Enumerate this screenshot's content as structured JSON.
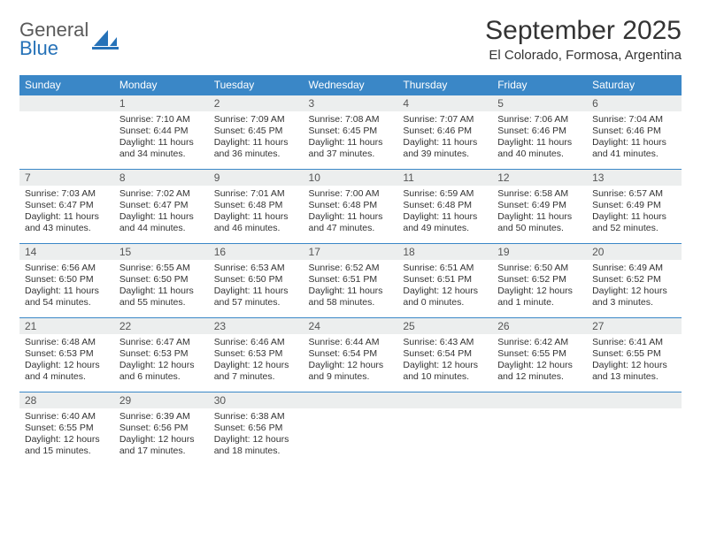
{
  "brand": {
    "name_a": "General",
    "name_b": "Blue"
  },
  "title": "September 2025",
  "location": "El Colorado, Formosa, Argentina",
  "colors": {
    "header_bg": "#3a87c7",
    "header_text": "#ffffff",
    "daynum_bg": "#eceeee",
    "cell_border": "#3a87c7",
    "brand_gray": "#5a5a5a",
    "brand_blue": "#2672b8"
  },
  "weekdays": [
    "Sunday",
    "Monday",
    "Tuesday",
    "Wednesday",
    "Thursday",
    "Friday",
    "Saturday"
  ],
  "weeks": [
    [
      null,
      {
        "n": "1",
        "sr": "Sunrise: 7:10 AM",
        "ss": "Sunset: 6:44 PM",
        "d1": "Daylight: 11 hours",
        "d2": "and 34 minutes."
      },
      {
        "n": "2",
        "sr": "Sunrise: 7:09 AM",
        "ss": "Sunset: 6:45 PM",
        "d1": "Daylight: 11 hours",
        "d2": "and 36 minutes."
      },
      {
        "n": "3",
        "sr": "Sunrise: 7:08 AM",
        "ss": "Sunset: 6:45 PM",
        "d1": "Daylight: 11 hours",
        "d2": "and 37 minutes."
      },
      {
        "n": "4",
        "sr": "Sunrise: 7:07 AM",
        "ss": "Sunset: 6:46 PM",
        "d1": "Daylight: 11 hours",
        "d2": "and 39 minutes."
      },
      {
        "n": "5",
        "sr": "Sunrise: 7:06 AM",
        "ss": "Sunset: 6:46 PM",
        "d1": "Daylight: 11 hours",
        "d2": "and 40 minutes."
      },
      {
        "n": "6",
        "sr": "Sunrise: 7:04 AM",
        "ss": "Sunset: 6:46 PM",
        "d1": "Daylight: 11 hours",
        "d2": "and 41 minutes."
      }
    ],
    [
      {
        "n": "7",
        "sr": "Sunrise: 7:03 AM",
        "ss": "Sunset: 6:47 PM",
        "d1": "Daylight: 11 hours",
        "d2": "and 43 minutes."
      },
      {
        "n": "8",
        "sr": "Sunrise: 7:02 AM",
        "ss": "Sunset: 6:47 PM",
        "d1": "Daylight: 11 hours",
        "d2": "and 44 minutes."
      },
      {
        "n": "9",
        "sr": "Sunrise: 7:01 AM",
        "ss": "Sunset: 6:48 PM",
        "d1": "Daylight: 11 hours",
        "d2": "and 46 minutes."
      },
      {
        "n": "10",
        "sr": "Sunrise: 7:00 AM",
        "ss": "Sunset: 6:48 PM",
        "d1": "Daylight: 11 hours",
        "d2": "and 47 minutes."
      },
      {
        "n": "11",
        "sr": "Sunrise: 6:59 AM",
        "ss": "Sunset: 6:48 PM",
        "d1": "Daylight: 11 hours",
        "d2": "and 49 minutes."
      },
      {
        "n": "12",
        "sr": "Sunrise: 6:58 AM",
        "ss": "Sunset: 6:49 PM",
        "d1": "Daylight: 11 hours",
        "d2": "and 50 minutes."
      },
      {
        "n": "13",
        "sr": "Sunrise: 6:57 AM",
        "ss": "Sunset: 6:49 PM",
        "d1": "Daylight: 11 hours",
        "d2": "and 52 minutes."
      }
    ],
    [
      {
        "n": "14",
        "sr": "Sunrise: 6:56 AM",
        "ss": "Sunset: 6:50 PM",
        "d1": "Daylight: 11 hours",
        "d2": "and 54 minutes."
      },
      {
        "n": "15",
        "sr": "Sunrise: 6:55 AM",
        "ss": "Sunset: 6:50 PM",
        "d1": "Daylight: 11 hours",
        "d2": "and 55 minutes."
      },
      {
        "n": "16",
        "sr": "Sunrise: 6:53 AM",
        "ss": "Sunset: 6:50 PM",
        "d1": "Daylight: 11 hours",
        "d2": "and 57 minutes."
      },
      {
        "n": "17",
        "sr": "Sunrise: 6:52 AM",
        "ss": "Sunset: 6:51 PM",
        "d1": "Daylight: 11 hours",
        "d2": "and 58 minutes."
      },
      {
        "n": "18",
        "sr": "Sunrise: 6:51 AM",
        "ss": "Sunset: 6:51 PM",
        "d1": "Daylight: 12 hours",
        "d2": "and 0 minutes."
      },
      {
        "n": "19",
        "sr": "Sunrise: 6:50 AM",
        "ss": "Sunset: 6:52 PM",
        "d1": "Daylight: 12 hours",
        "d2": "and 1 minute."
      },
      {
        "n": "20",
        "sr": "Sunrise: 6:49 AM",
        "ss": "Sunset: 6:52 PM",
        "d1": "Daylight: 12 hours",
        "d2": "and 3 minutes."
      }
    ],
    [
      {
        "n": "21",
        "sr": "Sunrise: 6:48 AM",
        "ss": "Sunset: 6:53 PM",
        "d1": "Daylight: 12 hours",
        "d2": "and 4 minutes."
      },
      {
        "n": "22",
        "sr": "Sunrise: 6:47 AM",
        "ss": "Sunset: 6:53 PM",
        "d1": "Daylight: 12 hours",
        "d2": "and 6 minutes."
      },
      {
        "n": "23",
        "sr": "Sunrise: 6:46 AM",
        "ss": "Sunset: 6:53 PM",
        "d1": "Daylight: 12 hours",
        "d2": "and 7 minutes."
      },
      {
        "n": "24",
        "sr": "Sunrise: 6:44 AM",
        "ss": "Sunset: 6:54 PM",
        "d1": "Daylight: 12 hours",
        "d2": "and 9 minutes."
      },
      {
        "n": "25",
        "sr": "Sunrise: 6:43 AM",
        "ss": "Sunset: 6:54 PM",
        "d1": "Daylight: 12 hours",
        "d2": "and 10 minutes."
      },
      {
        "n": "26",
        "sr": "Sunrise: 6:42 AM",
        "ss": "Sunset: 6:55 PM",
        "d1": "Daylight: 12 hours",
        "d2": "and 12 minutes."
      },
      {
        "n": "27",
        "sr": "Sunrise: 6:41 AM",
        "ss": "Sunset: 6:55 PM",
        "d1": "Daylight: 12 hours",
        "d2": "and 13 minutes."
      }
    ],
    [
      {
        "n": "28",
        "sr": "Sunrise: 6:40 AM",
        "ss": "Sunset: 6:55 PM",
        "d1": "Daylight: 12 hours",
        "d2": "and 15 minutes."
      },
      {
        "n": "29",
        "sr": "Sunrise: 6:39 AM",
        "ss": "Sunset: 6:56 PM",
        "d1": "Daylight: 12 hours",
        "d2": "and 17 minutes."
      },
      {
        "n": "30",
        "sr": "Sunrise: 6:38 AM",
        "ss": "Sunset: 6:56 PM",
        "d1": "Daylight: 12 hours",
        "d2": "and 18 minutes."
      },
      null,
      null,
      null,
      null
    ]
  ]
}
